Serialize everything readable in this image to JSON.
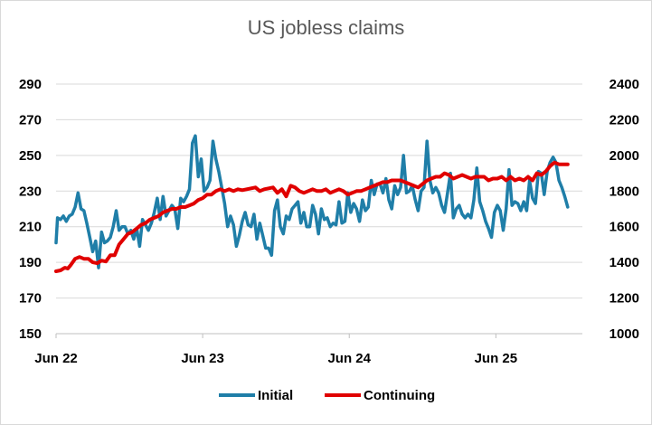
{
  "chart_data": {
    "type": "line",
    "title": "US jobless claims",
    "xlabel": "",
    "ylabel": "",
    "x_tick_labels": [
      "Jun 22",
      "Jun 23",
      "Jun 24",
      "Jun 25"
    ],
    "y_left": {
      "ticks": [
        150,
        170,
        190,
        210,
        230,
        250,
        270,
        290
      ],
      "ylim": [
        150,
        290
      ]
    },
    "y_right": {
      "ticks": [
        1000,
        1200,
        1400,
        1600,
        1800,
        2000,
        2200,
        2400
      ],
      "ylim": [
        1000,
        2400
      ]
    },
    "grid": true,
    "legend": "bottom",
    "x_unit": "year (decimal)",
    "series": [
      {
        "name": "Initial",
        "axis": "left",
        "color": "#1f7ea8",
        "points": [
          [
            2022.0,
            201
          ],
          [
            2022.01,
            215
          ],
          [
            2022.03,
            214
          ],
          [
            2022.05,
            216
          ],
          [
            2022.07,
            213
          ],
          [
            2022.09,
            216
          ],
          [
            2022.11,
            217
          ],
          [
            2022.13,
            221
          ],
          [
            2022.15,
            229
          ],
          [
            2022.17,
            220
          ],
          [
            2022.19,
            219
          ],
          [
            2022.21,
            212
          ],
          [
            2022.23,
            204
          ],
          [
            2022.25,
            196
          ],
          [
            2022.27,
            202
          ],
          [
            2022.29,
            187
          ],
          [
            2022.31,
            207
          ],
          [
            2022.33,
            201
          ],
          [
            2022.35,
            202
          ],
          [
            2022.37,
            204
          ],
          [
            2022.39,
            210
          ],
          [
            2022.41,
            219
          ],
          [
            2022.43,
            208
          ],
          [
            2022.45,
            210
          ],
          [
            2022.47,
            210
          ],
          [
            2022.49,
            206
          ],
          [
            2022.51,
            208
          ],
          [
            2022.53,
            203
          ],
          [
            2022.55,
            209
          ],
          [
            2022.57,
            199
          ],
          [
            2022.59,
            214
          ],
          [
            2022.61,
            211
          ],
          [
            2022.63,
            208
          ],
          [
            2022.65,
            212
          ],
          [
            2022.67,
            218
          ],
          [
            2022.69,
            226
          ],
          [
            2022.71,
            214
          ],
          [
            2022.73,
            227
          ],
          [
            2022.75,
            216
          ],
          [
            2022.77,
            219
          ],
          [
            2022.79,
            222
          ],
          [
            2022.81,
            220
          ],
          [
            2022.83,
            209
          ],
          [
            2022.85,
            226
          ],
          [
            2022.87,
            224
          ],
          [
            2022.89,
            227
          ],
          [
            2022.91,
            231
          ],
          [
            2022.93,
            257
          ],
          [
            2022.95,
            261
          ],
          [
            2022.97,
            238
          ],
          [
            2022.99,
            248
          ],
          [
            2023.01,
            230
          ],
          [
            2023.03,
            232
          ],
          [
            2023.05,
            236
          ],
          [
            2023.07,
            258
          ],
          [
            2023.09,
            248
          ],
          [
            2023.11,
            241
          ],
          [
            2023.13,
            232
          ],
          [
            2023.15,
            223
          ],
          [
            2023.17,
            210
          ],
          [
            2023.19,
            216
          ],
          [
            2023.21,
            211
          ],
          [
            2023.23,
            199
          ],
          [
            2023.25,
            205
          ],
          [
            2023.27,
            213
          ],
          [
            2023.29,
            218
          ],
          [
            2023.31,
            211
          ],
          [
            2023.33,
            210
          ],
          [
            2023.35,
            217
          ],
          [
            2023.37,
            203
          ],
          [
            2023.39,
            212
          ],
          [
            2023.41,
            205
          ],
          [
            2023.43,
            198
          ],
          [
            2023.45,
            198
          ],
          [
            2023.47,
            194
          ],
          [
            2023.49,
            219
          ],
          [
            2023.51,
            225
          ],
          [
            2023.53,
            210
          ],
          [
            2023.55,
            206
          ],
          [
            2023.57,
            216
          ],
          [
            2023.59,
            214
          ],
          [
            2023.61,
            220
          ],
          [
            2023.63,
            222
          ],
          [
            2023.65,
            224
          ],
          [
            2023.67,
            212
          ],
          [
            2023.69,
            218
          ],
          [
            2023.71,
            210
          ],
          [
            2023.73,
            210
          ],
          [
            2023.75,
            222
          ],
          [
            2023.77,
            217
          ],
          [
            2023.79,
            206
          ],
          [
            2023.81,
            220
          ],
          [
            2023.83,
            214
          ],
          [
            2023.85,
            215
          ],
          [
            2023.87,
            210
          ],
          [
            2023.89,
            212
          ],
          [
            2023.91,
            211
          ],
          [
            2023.93,
            224
          ],
          [
            2023.95,
            212
          ],
          [
            2023.97,
            213
          ],
          [
            2023.99,
            229
          ],
          [
            2024.01,
            218
          ],
          [
            2024.03,
            223
          ],
          [
            2024.05,
            220
          ],
          [
            2024.07,
            213
          ],
          [
            2024.09,
            225
          ],
          [
            2024.11,
            219
          ],
          [
            2024.13,
            221
          ],
          [
            2024.15,
            236
          ],
          [
            2024.17,
            228
          ],
          [
            2024.19,
            234
          ],
          [
            2024.21,
            234
          ],
          [
            2024.23,
            229
          ],
          [
            2024.25,
            237
          ],
          [
            2024.27,
            225
          ],
          [
            2024.29,
            220
          ],
          [
            2024.31,
            233
          ],
          [
            2024.33,
            228
          ],
          [
            2024.35,
            232
          ],
          [
            2024.37,
            250
          ],
          [
            2024.39,
            229
          ],
          [
            2024.41,
            230
          ],
          [
            2024.43,
            233
          ],
          [
            2024.45,
            225
          ],
          [
            2024.47,
            219
          ],
          [
            2024.49,
            230
          ],
          [
            2024.51,
            232
          ],
          [
            2024.53,
            258
          ],
          [
            2024.55,
            236
          ],
          [
            2024.57,
            229
          ],
          [
            2024.59,
            232
          ],
          [
            2024.61,
            229
          ],
          [
            2024.63,
            222
          ],
          [
            2024.65,
            218
          ],
          [
            2024.67,
            229
          ],
          [
            2024.69,
            240
          ],
          [
            2024.71,
            215
          ],
          [
            2024.73,
            220
          ],
          [
            2024.75,
            222
          ],
          [
            2024.77,
            217
          ],
          [
            2024.79,
            215
          ],
          [
            2024.81,
            217
          ],
          [
            2024.83,
            215
          ],
          [
            2024.85,
            225
          ],
          [
            2024.87,
            243
          ],
          [
            2024.89,
            224
          ],
          [
            2024.91,
            219
          ],
          [
            2024.93,
            213
          ],
          [
            2024.95,
            209
          ],
          [
            2024.97,
            204
          ],
          [
            2024.99,
            218
          ],
          [
            2025.01,
            222
          ],
          [
            2025.03,
            219
          ],
          [
            2025.05,
            208
          ],
          [
            2025.07,
            220
          ],
          [
            2025.09,
            242
          ],
          [
            2025.11,
            222
          ],
          [
            2025.13,
            224
          ],
          [
            2025.15,
            223
          ],
          [
            2025.17,
            219
          ],
          [
            2025.19,
            224
          ],
          [
            2025.21,
            219
          ],
          [
            2025.23,
            236
          ],
          [
            2025.25,
            226
          ],
          [
            2025.27,
            223
          ],
          [
            2025.29,
            241
          ],
          [
            2025.31,
            240
          ],
          [
            2025.33,
            228
          ],
          [
            2025.35,
            241
          ],
          [
            2025.37,
            246
          ],
          [
            2025.39,
            249
          ],
          [
            2025.41,
            246
          ],
          [
            2025.43,
            236
          ],
          [
            2025.45,
            232
          ],
          [
            2025.47,
            227
          ],
          [
            2025.49,
            221
          ]
        ]
      },
      {
        "name": "Continuing",
        "axis": "right",
        "color": "#e00000",
        "points": [
          [
            2022.0,
            1350
          ],
          [
            2022.03,
            1355
          ],
          [
            2022.06,
            1370
          ],
          [
            2022.08,
            1365
          ],
          [
            2022.1,
            1385
          ],
          [
            2022.13,
            1420
          ],
          [
            2022.16,
            1430
          ],
          [
            2022.19,
            1420
          ],
          [
            2022.22,
            1420
          ],
          [
            2022.25,
            1400
          ],
          [
            2022.28,
            1395
          ],
          [
            2022.31,
            1410
          ],
          [
            2022.34,
            1405
          ],
          [
            2022.37,
            1440
          ],
          [
            2022.4,
            1440
          ],
          [
            2022.43,
            1500
          ],
          [
            2022.46,
            1530
          ],
          [
            2022.49,
            1560
          ],
          [
            2022.52,
            1570
          ],
          [
            2022.55,
            1590
          ],
          [
            2022.58,
            1610
          ],
          [
            2022.61,
            1620
          ],
          [
            2022.64,
            1640
          ],
          [
            2022.67,
            1650
          ],
          [
            2022.7,
            1660
          ],
          [
            2022.73,
            1680
          ],
          [
            2022.76,
            1690
          ],
          [
            2022.79,
            1700
          ],
          [
            2022.82,
            1700
          ],
          [
            2022.85,
            1710
          ],
          [
            2022.88,
            1710
          ],
          [
            2022.91,
            1720
          ],
          [
            2022.94,
            1730
          ],
          [
            2022.97,
            1750
          ],
          [
            2023.0,
            1760
          ],
          [
            2023.03,
            1780
          ],
          [
            2023.06,
            1780
          ],
          [
            2023.09,
            1800
          ],
          [
            2023.12,
            1810
          ],
          [
            2023.15,
            1800
          ],
          [
            2023.18,
            1810
          ],
          [
            2023.21,
            1800
          ],
          [
            2023.24,
            1810
          ],
          [
            2023.27,
            1805
          ],
          [
            2023.3,
            1810
          ],
          [
            2023.33,
            1815
          ],
          [
            2023.36,
            1820
          ],
          [
            2023.39,
            1800
          ],
          [
            2023.42,
            1810
          ],
          [
            2023.45,
            1815
          ],
          [
            2023.48,
            1820
          ],
          [
            2023.51,
            1790
          ],
          [
            2023.54,
            1810
          ],
          [
            2023.57,
            1770
          ],
          [
            2023.6,
            1830
          ],
          [
            2023.63,
            1820
          ],
          [
            2023.66,
            1800
          ],
          [
            2023.69,
            1790
          ],
          [
            2023.72,
            1800
          ],
          [
            2023.75,
            1810
          ],
          [
            2023.78,
            1800
          ],
          [
            2023.81,
            1800
          ],
          [
            2023.84,
            1810
          ],
          [
            2023.87,
            1790
          ],
          [
            2023.9,
            1800
          ],
          [
            2023.93,
            1810
          ],
          [
            2023.96,
            1800
          ],
          [
            2023.99,
            1780
          ],
          [
            2024.02,
            1790
          ],
          [
            2024.05,
            1800
          ],
          [
            2024.08,
            1800
          ],
          [
            2024.11,
            1810
          ],
          [
            2024.14,
            1820
          ],
          [
            2024.17,
            1830
          ],
          [
            2024.2,
            1840
          ],
          [
            2024.23,
            1850
          ],
          [
            2024.26,
            1850
          ],
          [
            2024.29,
            1860
          ],
          [
            2024.32,
            1860
          ],
          [
            2024.35,
            1860
          ],
          [
            2024.38,
            1850
          ],
          [
            2024.41,
            1840
          ],
          [
            2024.44,
            1830
          ],
          [
            2024.47,
            1820
          ],
          [
            2024.5,
            1840
          ],
          [
            2024.53,
            1860
          ],
          [
            2024.56,
            1870
          ],
          [
            2024.59,
            1880
          ],
          [
            2024.62,
            1880
          ],
          [
            2024.65,
            1900
          ],
          [
            2024.68,
            1890
          ],
          [
            2024.71,
            1870
          ],
          [
            2024.74,
            1880
          ],
          [
            2024.77,
            1890
          ],
          [
            2024.8,
            1880
          ],
          [
            2024.83,
            1870
          ],
          [
            2024.86,
            1880
          ],
          [
            2024.89,
            1880
          ],
          [
            2024.92,
            1880
          ],
          [
            2024.95,
            1860
          ],
          [
            2024.98,
            1870
          ],
          [
            2025.01,
            1870
          ],
          [
            2025.04,
            1880
          ],
          [
            2025.07,
            1860
          ],
          [
            2025.1,
            1880
          ],
          [
            2025.13,
            1860
          ],
          [
            2025.16,
            1870
          ],
          [
            2025.19,
            1860
          ],
          [
            2025.22,
            1880
          ],
          [
            2025.25,
            1860
          ],
          [
            2025.28,
            1900
          ],
          [
            2025.31,
            1890
          ],
          [
            2025.34,
            1910
          ],
          [
            2025.37,
            1940
          ],
          [
            2025.4,
            1960
          ],
          [
            2025.43,
            1950
          ],
          [
            2025.46,
            1950
          ],
          [
            2025.49,
            1950
          ]
        ]
      }
    ]
  }
}
